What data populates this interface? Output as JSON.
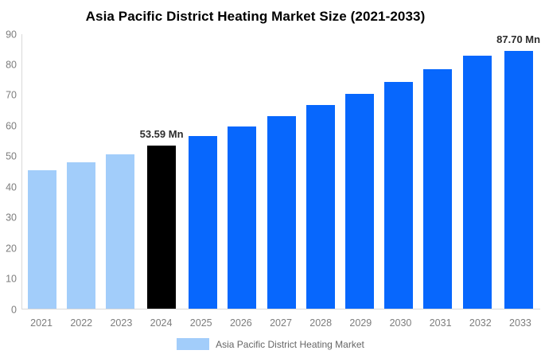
{
  "title": "Asia Pacific District Heating Market Size (2021-2033)",
  "legend": {
    "label": "Asia Pacific District Heating Market"
  },
  "colors": {
    "historical_bar": "#a2cdfa",
    "highlight_bar": "#000000",
    "forecast_bar": "#0767fd",
    "axis_line": "#d9d9d9",
    "tick_label": "#7d7d7d",
    "data_label": "#2d2d2d",
    "legend_text": "#666666",
    "background": "#ffffff"
  },
  "chart_data": {
    "type": "bar",
    "title": "Asia Pacific District Heating Market Size (2021-2033)",
    "unit": "Mn",
    "categories": [
      "2021",
      "2022",
      "2023",
      "2024",
      "2025",
      "2026",
      "2027",
      "2028",
      "2029",
      "2030",
      "2031",
      "2032",
      "2033"
    ],
    "values": [
      45.4,
      47.9,
      50.6,
      53.59,
      56.6,
      59.8,
      63.1,
      66.7,
      70.4,
      74.4,
      78.6,
      83.0,
      87.7
    ],
    "bar_labels": [
      "",
      "",
      "",
      "53.59 Mn",
      "",
      "",
      "",
      "",
      "",
      "",
      "",
      "",
      "87.70 Mn"
    ],
    "bar_colors": [
      "#a2cdfa",
      "#a2cdfa",
      "#a2cdfa",
      "#000000",
      "#0767fd",
      "#0767fd",
      "#0767fd",
      "#0767fd",
      "#0767fd",
      "#0767fd",
      "#0767fd",
      "#0767fd",
      "#0767fd"
    ],
    "xlabel": "",
    "ylabel": "",
    "ylim": [
      0,
      90
    ],
    "yticks": [
      0,
      10,
      20,
      30,
      40,
      50,
      60,
      70,
      80,
      90
    ],
    "grid": false,
    "legend_entries": [
      "Asia Pacific District Heating Market"
    ],
    "legend_position": "bottom"
  }
}
